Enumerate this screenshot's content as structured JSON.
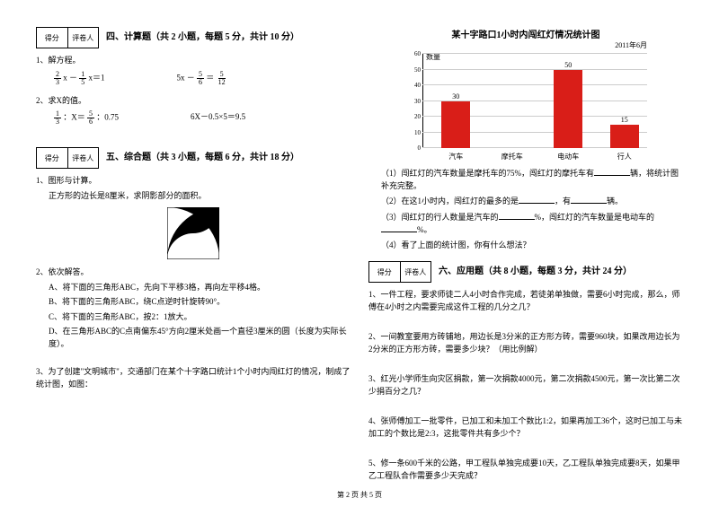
{
  "scorebox": {
    "score": "得分",
    "reviewer": "评卷人"
  },
  "sec4": {
    "title": "四、计算题（共 2 小题，每题 5 分，共计 10 分）",
    "q1": "1、解方程。",
    "eq1a_l": "2",
    "eq1a_ld": "3",
    "eq1a_mid": " x － ",
    "eq1a_r": "1",
    "eq1a_rd": "5",
    "eq1a_tail": " x＝1",
    "eq1b_l": "5x － ",
    "eq1b_n1": "5",
    "eq1b_d1": "6",
    "eq1b_mid": "＝",
    "eq1b_n2": "5",
    "eq1b_d2": "12",
    "q2": "2、求X的值。",
    "eq2a_n1": "1",
    "eq2a_d1": "3",
    "eq2a_mid1": "：X＝",
    "eq2a_n2": "5",
    "eq2a_d2": "6",
    "eq2a_mid2": "：0.75",
    "eq2b": "6X－0.5×5＝9.5"
  },
  "sec5": {
    "title": "五、综合题（共 3 小题，每题 6 分，共计 18 分）",
    "q1": "1、图形与计算。",
    "q1s": "正方形的边长是8厘米，求阴影部分的面积。",
    "q2": "2、依次解答。",
    "q2a": "A、将下面的三角形ABC，先向下平移3格，再向左平移4格。",
    "q2b": "B、将下面的三角形ABC，绕C点逆时针旋转90°。",
    "q2c": "C、将下面的三角形ABC，按2：1放大。",
    "q2d": "D、在三角形ABC的C点南偏东45°方向2厘米处画一个直径3厘米的圆（长度为实际长度）。",
    "q3": "3、为了创建\"文明城市\"，交通部门在某个十字路口统计1个小时内闯红灯的情况，制成了统计图，如图："
  },
  "chart": {
    "title": "某十字路口1小时内闯红灯情况统计图",
    "date": "2011年6月",
    "y_title": "数量",
    "y_ticks": [
      0,
      10,
      20,
      30,
      40,
      50,
      60
    ],
    "categories": [
      "汽车",
      "摩托车",
      "电动车",
      "行人"
    ],
    "values": [
      30,
      null,
      50,
      15
    ],
    "bar_color": "#d91e18",
    "grid_color": "#cccccc"
  },
  "right": {
    "r1a": "（1）闯红灯的汽车数量是摩托车的75%，闯红灯的摩托车有",
    "r1b": "辆，将统计图补充完整。",
    "r2a": "（2）在这1小时内，闯红灯的最多的是",
    "r2b": "，有",
    "r2c": "辆。",
    "r3a": "（3）闯红灯的行人数量是汽车的",
    "r3b": "%，闯红灯的汽车数量是电动车的",
    "r3c": "%。",
    "r4": "（4）看了上面的统计图，你有什么想法？"
  },
  "sec6": {
    "title": "六、应用题（共 8 小题，每题 3 分，共计 24 分）",
    "q1": "1、一件工程，要求师徒二人4小时合作完成，若徒弟单独做，需要6小时完成，那么，师傅在4小时之内需要完成这件工程的几分之几？",
    "q2": "2、一间教室要用方砖铺地，用边长是3分米的正方形方砖，需要960块，如果改用边长为2分米的正方形方砖，需要多少块？（用比例解）",
    "q3": "3、红光小学师生向灾区捐款，第一次捐款4000元，第二次捐款4500元，第一次比第二次少捐百分之几？",
    "q4": "4、张师傅加工一批零件，已加工和未加工个数比1:2，如果再加工36个，这时已加工与未加工的个数比是2:3，这批零件共有多少个？",
    "q5": "5、修一条600千米的公路，甲工程队单独完成要10天，乙工程队单独完成要8天，如果甲乙工程队合作需要多少天完成？"
  },
  "footer": "第 2 页 共 5 页"
}
